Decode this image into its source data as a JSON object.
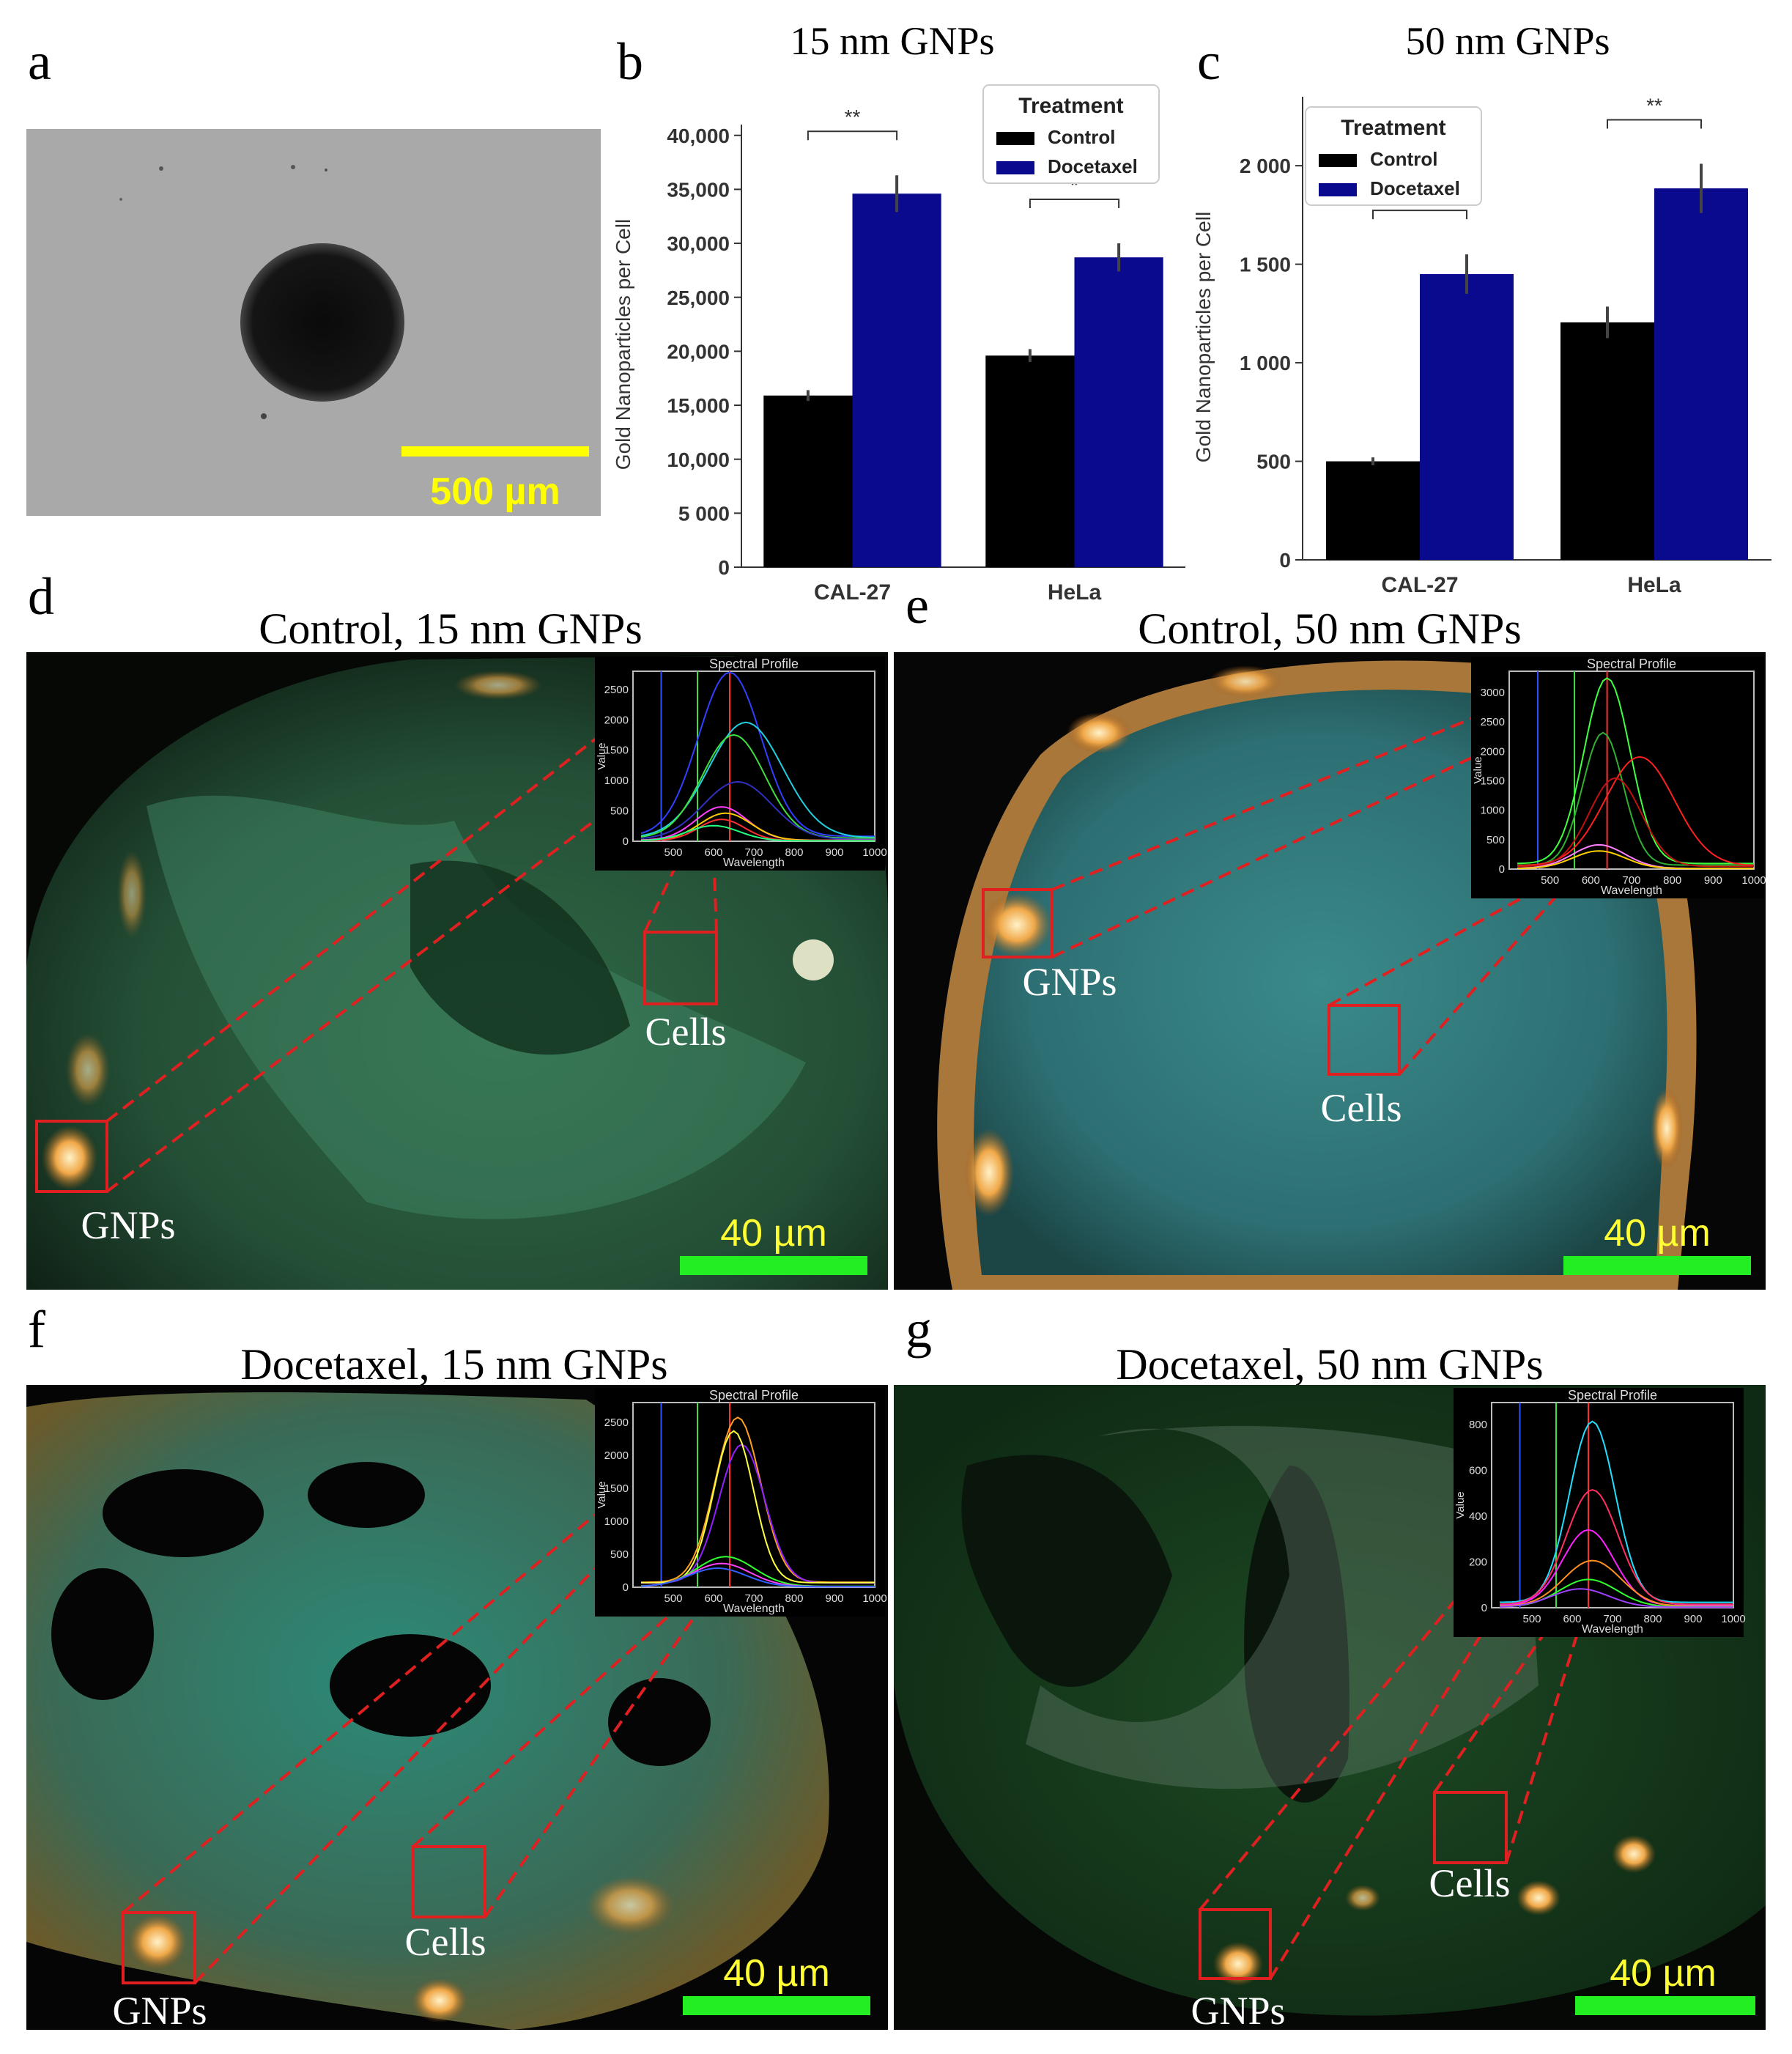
{
  "panel_letters": {
    "a": "a",
    "b": "b",
    "c": "c",
    "d": "d",
    "e": "e",
    "f": "f",
    "g": "g"
  },
  "panel_a": {
    "scalebar_label": "500 µm",
    "scalebar_color": "#ffff00"
  },
  "chart_data": [
    {
      "type": "bar",
      "title": "15 nm GNPs",
      "ylabel": "Gold Nanoparticles per Cell",
      "xlabel": "",
      "categories": [
        "CAL-27",
        "HeLa"
      ],
      "series": [
        {
          "name": "Control",
          "values": [
            15900,
            19600
          ],
          "errors": [
            500,
            600
          ],
          "color": "#000000"
        },
        {
          "name": "Docetaxel",
          "values": [
            34600,
            28700
          ],
          "errors": [
            1700,
            1300
          ],
          "color": "#0a0a8f"
        }
      ],
      "ylim": [
        0,
        41000
      ],
      "yticks": [
        0,
        5000,
        10000,
        15000,
        20000,
        25000,
        30000,
        35000,
        40000
      ],
      "ytick_labels": [
        "0",
        "5 000",
        "10,000",
        "15,000",
        "20,000",
        "25,000",
        "30,000",
        "35,000",
        "40,000"
      ],
      "significance": [
        "**",
        "*"
      ],
      "legend": {
        "title": "Treatment",
        "placement": "top-right"
      },
      "grid": false
    },
    {
      "type": "bar",
      "title": "50 nm GNPs",
      "ylabel": "Gold Nanoparticles per Cell",
      "xlabel": "",
      "categories": [
        "CAL-27",
        "HeLa"
      ],
      "series": [
        {
          "name": "Control",
          "values": [
            500,
            1205
          ],
          "errors": [
            20,
            80
          ],
          "color": "#000000"
        },
        {
          "name": "Docetaxel",
          "values": [
            1450,
            1885
          ],
          "errors": [
            100,
            125
          ],
          "color": "#0a0a8f"
        }
      ],
      "ylim": [
        0,
        2350
      ],
      "yticks": [
        0,
        500,
        1000,
        1500,
        2000
      ],
      "ytick_labels": [
        "0",
        "500",
        "1 000",
        "1 500",
        "2 000"
      ],
      "significance": [
        "*",
        "**"
      ],
      "legend": {
        "title": "Treatment",
        "placement": "top-left"
      },
      "grid": false
    }
  ],
  "micrographs": {
    "d": {
      "title": "Control, 15 nm GNPs",
      "gnps_label": "GNPs",
      "cells_label": "Cells",
      "scalebar_label": "40 µm"
    },
    "e": {
      "title": "Control, 50 nm GNPs",
      "gnps_label": "GNPs",
      "cells_label": "Cells",
      "scalebar_label": "40 µm"
    },
    "f": {
      "title": "Docetaxel, 15 nm GNPs",
      "gnps_label": "GNPs",
      "cells_label": "Cells",
      "scalebar_label": "40 µm"
    },
    "g": {
      "title": "Docetaxel, 50 nm GNPs",
      "gnps_label": "GNPs",
      "cells_label": "Cells",
      "scalebar_label": "40 µm"
    }
  },
  "spectral_insets": {
    "title": "Spectral Profile",
    "xlabel": "Wavelength",
    "ylabel": "Value",
    "xticks": [
      "500",
      "600",
      "700",
      "800",
      "900",
      "1000"
    ],
    "d_yticks": [
      "0",
      "500",
      "1000",
      "1500",
      "2000",
      "2500"
    ],
    "e_yticks": [
      "0",
      "500",
      "1000",
      "1500",
      "2000",
      "2500",
      "3000"
    ],
    "f_yticks": [
      "0",
      "500",
      "1000",
      "1500",
      "2000",
      "2500"
    ],
    "g_yticks": [
      "0",
      "200",
      "400",
      "600",
      "800"
    ]
  },
  "colors": {
    "scalebar_green": "#22ee22",
    "box_red": "#e02020",
    "label_yellow": "#ffff33"
  }
}
